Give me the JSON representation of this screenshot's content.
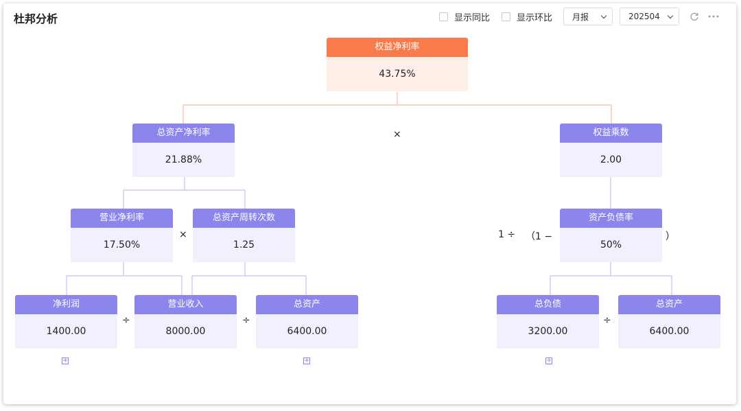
{
  "page": {
    "title": "杜邦分析"
  },
  "toolbar": {
    "yoy_label": "显示同比",
    "mom_label": "显示环比",
    "period_type": "月报",
    "period": "202504",
    "refresh_icon": "refresh-icon",
    "more_icon": "more-icon"
  },
  "nodes": {
    "roe": {
      "label": "权益净利率",
      "value": "43.75%"
    },
    "roa": {
      "label": "总资产净利率",
      "value": "21.88%"
    },
    "equity_multiplier": {
      "label": "权益乘数",
      "value": "2.00"
    },
    "net_margin": {
      "label": "营业净利率",
      "value": "17.50%"
    },
    "asset_turnover": {
      "label": "总资产周转次数",
      "value": "1.25"
    },
    "debt_ratio": {
      "label": "资产负债率",
      "value": "50%"
    },
    "net_profit": {
      "label": "净利润",
      "value": "1400.00"
    },
    "revenue": {
      "label": "营业收入",
      "value": "8000.00"
    },
    "total_assets_left": {
      "label": "总资产",
      "value": "6400.00"
    },
    "total_liabilities": {
      "label": "总负债",
      "value": "3200.00"
    },
    "total_assets_right": {
      "label": "总资产",
      "value": "6400.00"
    }
  },
  "operators": {
    "multiply": "×",
    "divide": "÷",
    "one_div": "1 ÷",
    "open_paren": "（1 −",
    "close_paren": "）",
    "expand": "+"
  },
  "colors": {
    "accent_purple": "#8b85ec",
    "accent_orange": "#f97a4a",
    "line_orange": "#f6b9a3",
    "line_purple": "#c3c0f2"
  }
}
